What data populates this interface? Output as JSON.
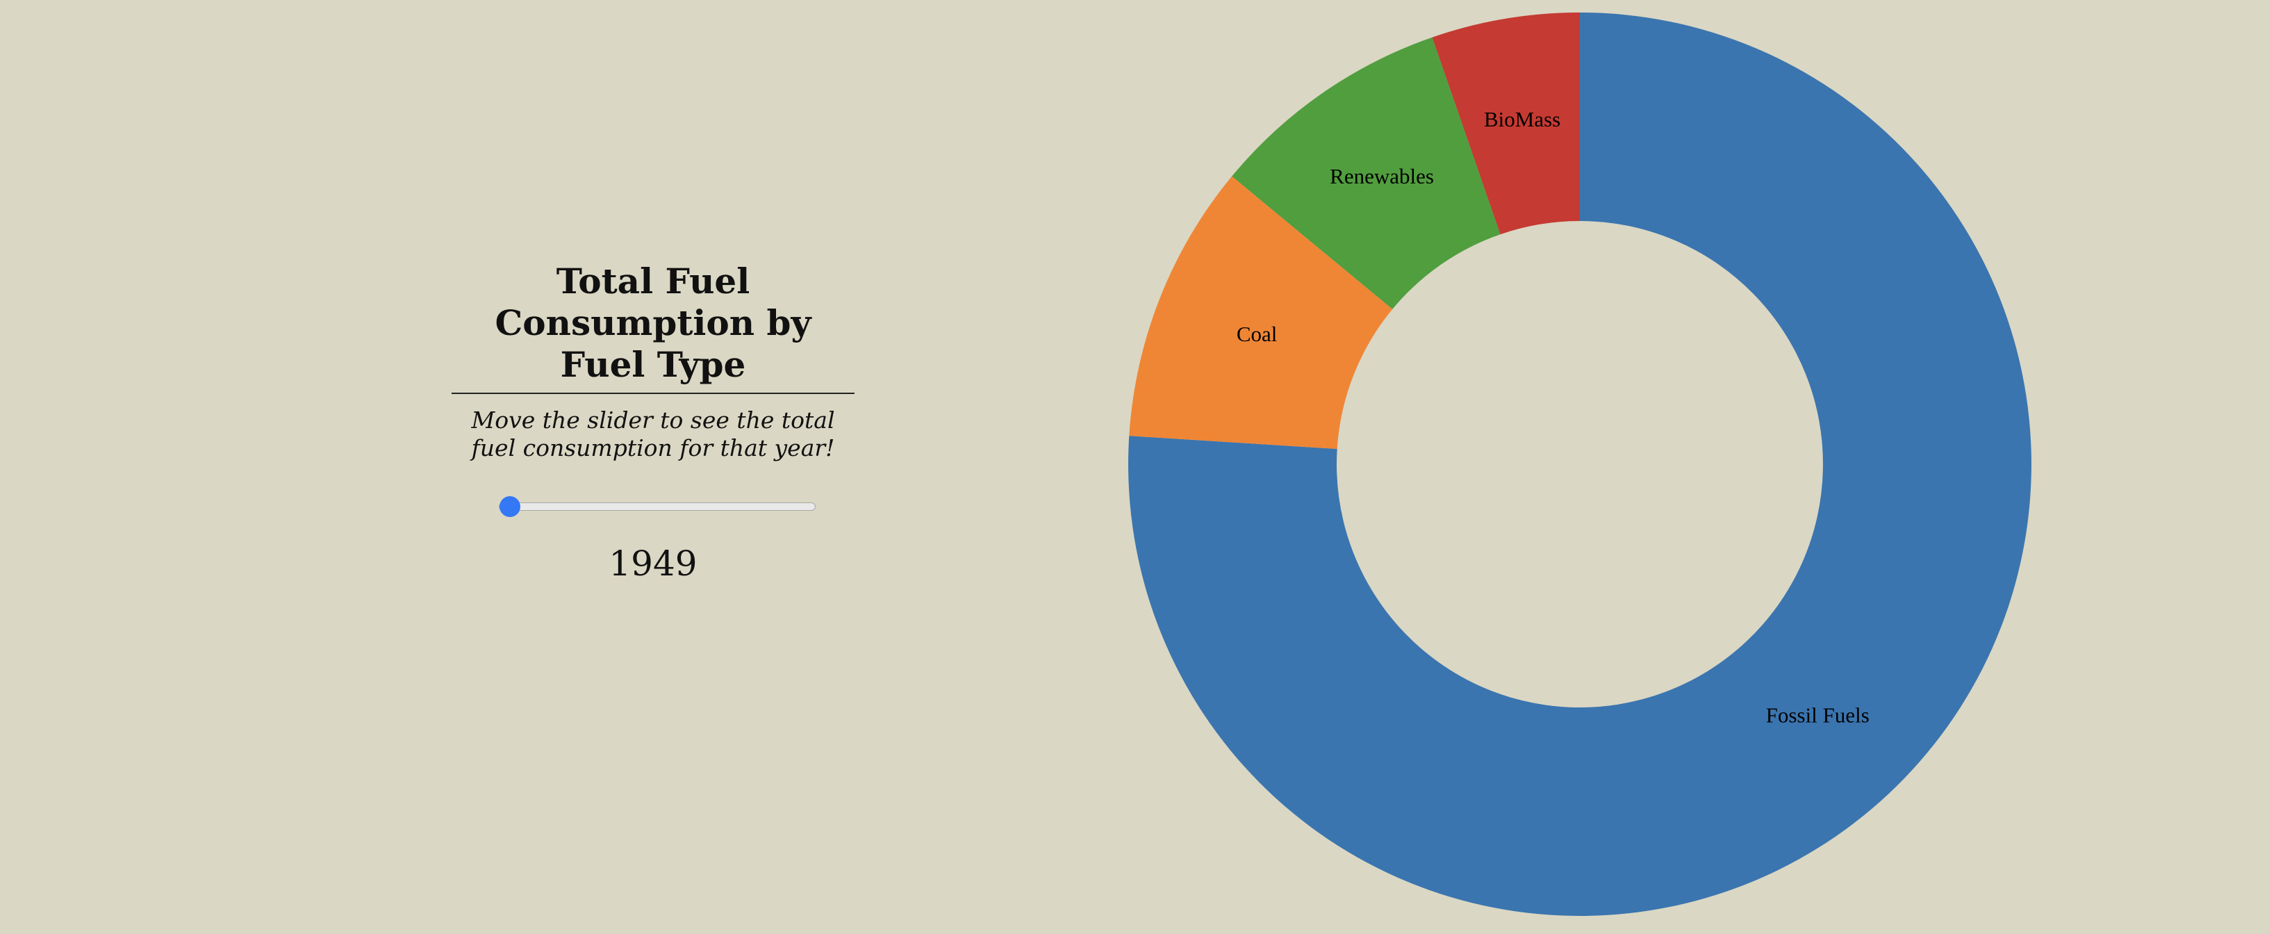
{
  "panel": {
    "title": "Total Fuel Consumption by Fuel Type",
    "subtitle": "Move the slider to see the total fuel consumption for that year!",
    "slider": {
      "value": 1949,
      "fraction": 0.0,
      "color": "#3478f6"
    }
  },
  "chart_data": {
    "type": "pie",
    "donut": true,
    "title": "",
    "year": "1949",
    "slices": [
      {
        "label": "Fossil Fuels",
        "share": 0.76,
        "color": "#3b75af"
      },
      {
        "label": "Coal",
        "share": 0.1,
        "color": "#ef8636"
      },
      {
        "label": "Renewables",
        "share": 0.087,
        "color": "#519e3e"
      },
      {
        "label": "BioMass",
        "share": 0.053,
        "color": "#c53a32"
      }
    ]
  }
}
